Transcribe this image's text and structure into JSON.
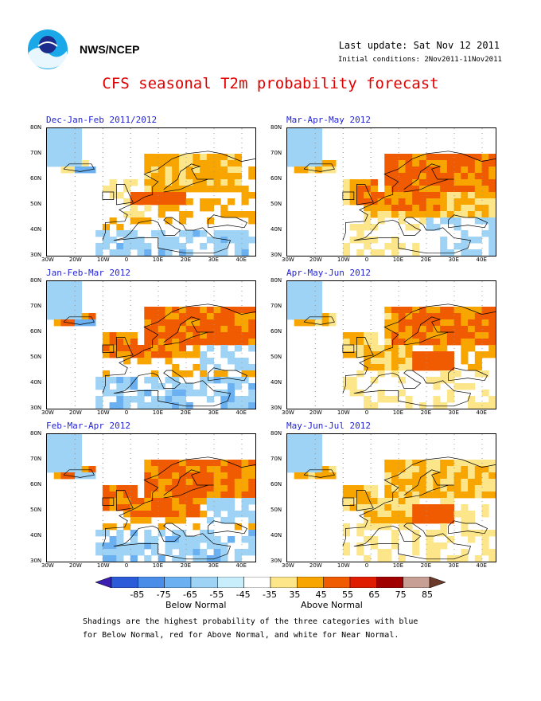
{
  "header": {
    "agency": "NWS/NCEP",
    "last_update": "Last update: Sat Nov 12 2011",
    "initial_conditions": "Initial conditions: 2Nov2011-11Nov2011",
    "title": "CFS seasonal T2m probability forecast"
  },
  "map_axes": {
    "lat_labels": [
      "80N",
      "70N",
      "60N",
      "50N",
      "40N",
      "30N"
    ],
    "lon_labels": [
      "30W",
      "20W",
      "10W",
      "0",
      "10E",
      "20E",
      "30E",
      "40E"
    ]
  },
  "panels": [
    {
      "title": "Dec-Jan-Feb 2011/2012",
      "pattern": "djf"
    },
    {
      "title": "Mar-Apr-May 2012",
      "pattern": "mam"
    },
    {
      "title": "Jan-Feb-Mar 2012",
      "pattern": "jfm"
    },
    {
      "title": "Apr-May-Jun 2012",
      "pattern": "amj"
    },
    {
      "title": "Feb-Mar-Apr 2012",
      "pattern": "fma"
    },
    {
      "title": "May-Jun-Jul 2012",
      "pattern": "mjj"
    }
  ],
  "colorbar": {
    "ticks": [
      "-85",
      "-75",
      "-65",
      "-55",
      "-45",
      "-35",
      "35",
      "45",
      "55",
      "65",
      "75",
      "85"
    ],
    "colors": [
      "#3b1fb0",
      "#2b5bd8",
      "#4a8de8",
      "#6bb0f0",
      "#9ed3f5",
      "#c8eefb",
      "#ffffff",
      "#fde58a",
      "#f8a500",
      "#f05a00",
      "#e01c00",
      "#a00000",
      "#c89f94",
      "#6b3a2a"
    ],
    "below_label": "Below Normal",
    "above_label": "Above Normal"
  },
  "footnote": {
    "line1": "Shadings are the highest probability of the three categories with blue",
    "line2": "for Below Normal, red for Above Normal, and white for Near Normal."
  }
}
